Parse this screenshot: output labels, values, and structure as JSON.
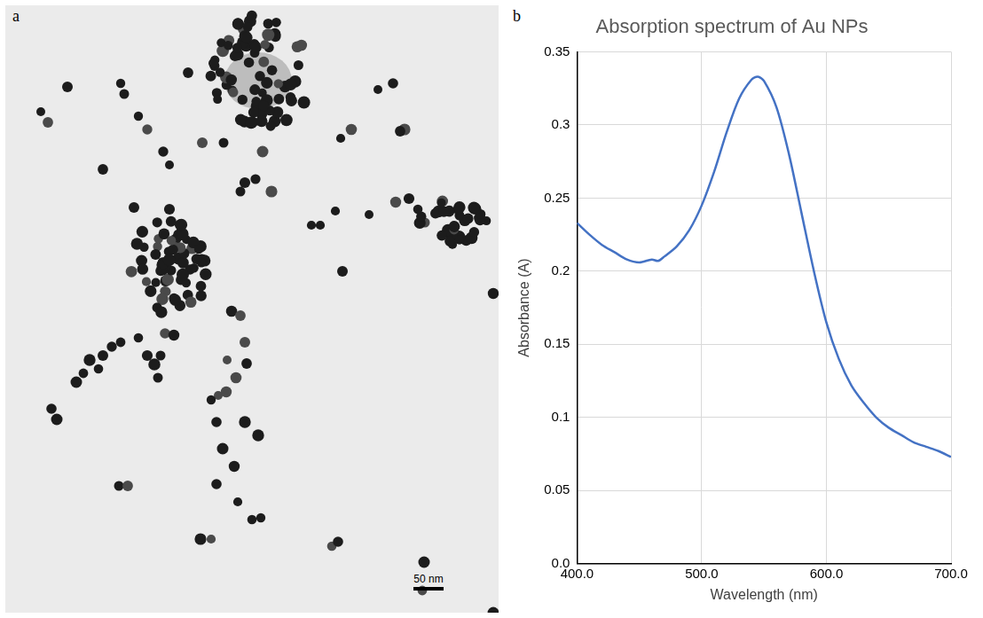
{
  "figure": {
    "panels": [
      {
        "letter": "a",
        "scale_bar": "50 nm"
      },
      {
        "letter": "b"
      }
    ]
  },
  "chart_data": {
    "type": "line",
    "title": "Absorption spectrum of Au NPs",
    "x_label": "Wavelength (nm)",
    "y_label": "Absorbance (A)",
    "x": [
      400,
      410,
      420,
      430,
      440,
      450,
      460,
      465,
      470,
      480,
      490,
      500,
      510,
      520,
      530,
      540,
      545,
      550,
      560,
      570,
      580,
      590,
      600,
      610,
      620,
      630,
      640,
      650,
      660,
      670,
      680,
      690,
      700
    ],
    "values": [
      0.233,
      0.225,
      0.218,
      0.213,
      0.208,
      0.206,
      0.208,
      0.207,
      0.21,
      0.217,
      0.228,
      0.245,
      0.268,
      0.295,
      0.318,
      0.331,
      0.333,
      0.33,
      0.312,
      0.28,
      0.24,
      0.2,
      0.165,
      0.14,
      0.122,
      0.11,
      0.1,
      0.093,
      0.088,
      0.083,
      0.08,
      0.077,
      0.073
    ],
    "color": "#4472c4",
    "xlim": [
      400,
      700
    ],
    "xticks": [
      {
        "value": 400,
        "label": "400.0"
      },
      {
        "value": 500,
        "label": "500.0"
      },
      {
        "value": 600,
        "label": "600.0"
      },
      {
        "value": 700,
        "label": "700.0"
      }
    ],
    "ylim": [
      0,
      0.35
    ],
    "yticks": [
      {
        "value": 0,
        "label": "0.0"
      },
      0.05,
      0.1,
      0.15,
      0.2,
      0.25,
      0.3,
      0.35
    ],
    "grid": true
  }
}
